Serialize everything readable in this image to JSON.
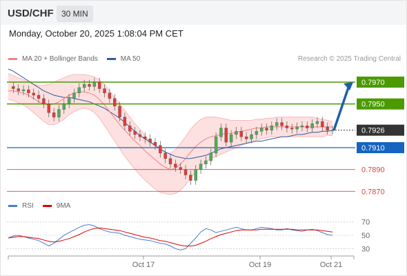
{
  "header": {
    "pair": "USD/CHF",
    "timeframe": "30 MIN"
  },
  "datetime": "Monday, October 20, 2025 1:08:04 PM CET",
  "legend": {
    "ma20": "MA 20 + Bollinger Bands",
    "ma50": "MA 50",
    "rsi": "RSI",
    "ma9": "9MA"
  },
  "credit": "Research © 2025 Trading Central",
  "colors": {
    "ma20": "#f08080",
    "ma50": "#2e5b9e",
    "band_fill": "#fde0e0",
    "resistance": "#4a9a00",
    "current": "#333333",
    "support_blue": "#1565c0",
    "support_red": "#e04040",
    "candle_up": "#4caf50",
    "candle_down": "#e53935",
    "arrow": "#1f5fa8",
    "rsi": "#4a7bd0",
    "rsi_ma": "#e00000"
  },
  "chart_data": [
    {
      "type": "line",
      "title": "USD/CHF 30 MIN",
      "ylim": [
        0.7862,
        0.7982
      ],
      "x_ticks": [
        "Oct 17",
        "Oct 19",
        "Oct 21"
      ],
      "levels": [
        {
          "value": 0.797,
          "label": "0.7970",
          "kind": "resistance"
        },
        {
          "value": 0.795,
          "label": "0.7950",
          "kind": "resistance"
        },
        {
          "value": 0.7926,
          "label": "0.7926",
          "kind": "current"
        },
        {
          "value": 0.791,
          "label": "0.7910",
          "kind": "pivot"
        },
        {
          "value": 0.789,
          "label": "0.7890",
          "kind": "support"
        },
        {
          "value": 0.787,
          "label": "0.7870",
          "kind": "support"
        }
      ],
      "price_path": [
        0.7966,
        0.7964,
        0.7962,
        0.7963,
        0.796,
        0.7958,
        0.7955,
        0.795,
        0.7942,
        0.7938,
        0.7945,
        0.795,
        0.7955,
        0.796,
        0.7965,
        0.7968,
        0.7966,
        0.797,
        0.7964,
        0.796,
        0.7955,
        0.7948,
        0.7938,
        0.793,
        0.7925,
        0.7922,
        0.792,
        0.7918,
        0.7915,
        0.7912,
        0.7905,
        0.79,
        0.7895,
        0.7892,
        0.789,
        0.7885,
        0.788,
        0.789,
        0.7895,
        0.7898,
        0.7905,
        0.792,
        0.7928,
        0.7915,
        0.7922,
        0.7925,
        0.792,
        0.7918,
        0.7922,
        0.7925,
        0.7928,
        0.7926,
        0.793,
        0.7933,
        0.793,
        0.7928,
        0.7927,
        0.7929,
        0.793,
        0.7928,
        0.7932,
        0.7934,
        0.7929,
        0.7926,
        0.7926
      ],
      "ma20_path": [
        0.7962,
        0.7962,
        0.7961,
        0.796,
        0.7958,
        0.7955,
        0.7952,
        0.795,
        0.7949,
        0.795,
        0.7952,
        0.7955,
        0.7958,
        0.796,
        0.7961,
        0.7961,
        0.796,
        0.7958,
        0.7954,
        0.7949,
        0.7943,
        0.7937,
        0.7931,
        0.7926,
        0.7921,
        0.7916,
        0.7912,
        0.7907,
        0.7903,
        0.7899,
        0.7895,
        0.7892,
        0.789,
        0.7891,
        0.7895,
        0.79,
        0.7906,
        0.7911,
        0.7915,
        0.7918,
        0.792,
        0.7921,
        0.7922,
        0.7923,
        0.7923,
        0.7924,
        0.7925,
        0.7926,
        0.7927,
        0.7928,
        0.7928,
        0.7929,
        0.7929,
        0.7929,
        0.7929,
        0.7929,
        0.7929,
        0.7929,
        0.7929,
        0.7929,
        0.7929,
        0.7929,
        0.7929,
        0.7929,
        0.7929
      ],
      "ma50_path": [
        0.7982,
        0.798,
        0.7977,
        0.7974,
        0.7971,
        0.7968,
        0.7965,
        0.7962,
        0.796,
        0.7958,
        0.7957,
        0.7956,
        0.7956,
        0.7955,
        0.7954,
        0.7953,
        0.7952,
        0.795,
        0.7948,
        0.7946,
        0.7943,
        0.794,
        0.7937,
        0.7933,
        0.7929,
        0.7925,
        0.7921,
        0.7918,
        0.7915,
        0.7912,
        0.7909,
        0.7906,
        0.7904,
        0.7902,
        0.7901,
        0.79,
        0.79,
        0.7901,
        0.7902,
        0.7903,
        0.7905,
        0.7907,
        0.7909,
        0.791,
        0.7911,
        0.7912,
        0.7913,
        0.7914,
        0.7915,
        0.7916,
        0.7916,
        0.7917,
        0.7918,
        0.7919,
        0.792,
        0.792,
        0.7921,
        0.7922,
        0.7922,
        0.7923,
        0.7924,
        0.7924,
        0.7925,
        0.7925,
        0.7926
      ],
      "band_upper": [
        0.7978,
        0.7976,
        0.7974,
        0.7972,
        0.797,
        0.7968,
        0.7967,
        0.7967,
        0.7968,
        0.797,
        0.7972,
        0.7974,
        0.7976,
        0.7977,
        0.7977,
        0.7977,
        0.7976,
        0.7975,
        0.7972,
        0.7968,
        0.7962,
        0.7956,
        0.795,
        0.7944,
        0.7938,
        0.7932,
        0.7927,
        0.7921,
        0.7916,
        0.7912,
        0.7908,
        0.7905,
        0.7905,
        0.7908,
        0.7914,
        0.792,
        0.7927,
        0.7932,
        0.7936,
        0.7938,
        0.7938,
        0.7938,
        0.7937,
        0.7936,
        0.7935,
        0.7935,
        0.7935,
        0.7935,
        0.7935,
        0.7936,
        0.7936,
        0.7937,
        0.7937,
        0.7938,
        0.7938,
        0.7938,
        0.7938,
        0.7938,
        0.7938,
        0.7938,
        0.7938,
        0.7937,
        0.7936,
        0.7935,
        0.7934
      ],
      "band_lower": [
        0.7954,
        0.7953,
        0.7951,
        0.7949,
        0.7946,
        0.7942,
        0.7938,
        0.7934,
        0.7931,
        0.7931,
        0.7933,
        0.7936,
        0.794,
        0.7943,
        0.7945,
        0.7946,
        0.7945,
        0.7942,
        0.7937,
        0.793,
        0.7923,
        0.7916,
        0.7909,
        0.7902,
        0.7896,
        0.789,
        0.7885,
        0.788,
        0.7876,
        0.7872,
        0.7869,
        0.7868,
        0.7867,
        0.7868,
        0.7871,
        0.7876,
        0.7882,
        0.7888,
        0.7893,
        0.7897,
        0.79,
        0.7902,
        0.7904,
        0.7906,
        0.7908,
        0.791,
        0.7912,
        0.7914,
        0.7916,
        0.7917,
        0.7918,
        0.7919,
        0.792,
        0.792,
        0.792,
        0.792,
        0.792,
        0.792,
        0.792,
        0.792,
        0.792,
        0.792,
        0.792,
        0.7921,
        0.7921
      ],
      "forecast_target": 0.797
    },
    {
      "type": "line",
      "title": "RSI",
      "ylim": [
        20,
        80
      ],
      "y_ticks": [
        70,
        50,
        30
      ],
      "rsi": [
        46,
        49,
        50,
        48,
        46,
        44,
        42,
        38,
        34,
        38,
        44,
        50,
        54,
        58,
        62,
        65,
        66,
        64,
        60,
        57,
        55,
        54,
        53,
        50,
        48,
        46,
        44,
        43,
        42,
        40,
        38,
        37,
        34,
        30,
        28,
        30,
        38,
        46,
        55,
        60,
        58,
        54,
        56,
        58,
        60,
        62,
        60,
        58,
        58,
        60,
        62,
        61,
        60,
        58,
        58,
        60,
        58,
        57,
        56,
        58,
        59,
        57,
        54,
        51,
        50
      ],
      "ma9": [
        46,
        47,
        48,
        48,
        47,
        46,
        45,
        43,
        41,
        40,
        41,
        43,
        45,
        48,
        51,
        55,
        58,
        60,
        61,
        60,
        59,
        58,
        57,
        55,
        53,
        51,
        49,
        47,
        46,
        44,
        42,
        41,
        39,
        37,
        35,
        34,
        34,
        35,
        38,
        41,
        45,
        48,
        51,
        53,
        55,
        57,
        58,
        58,
        58,
        58,
        59,
        59,
        59,
        59,
        59,
        59,
        59,
        58,
        58,
        58,
        58,
        58,
        57,
        56,
        55
      ]
    }
  ]
}
